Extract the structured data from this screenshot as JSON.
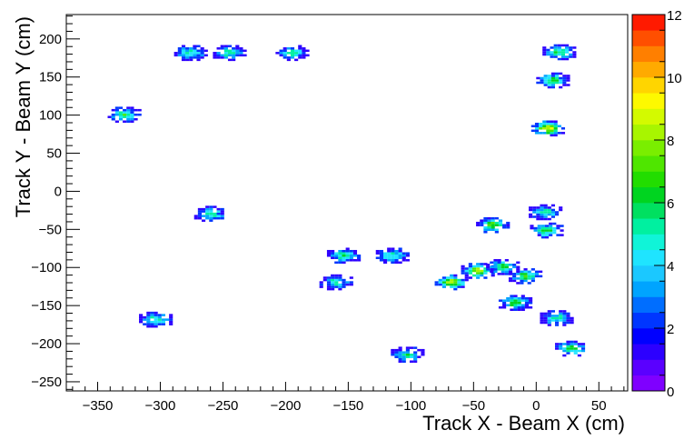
{
  "chart_data": {
    "type": "heatmap",
    "title": "",
    "xlabel": "Track X - Beam X (cm)",
    "ylabel": "Track Y - Beam Y (cm)",
    "xlim": [
      -375,
      73
    ],
    "ylim": [
      -262,
      232
    ],
    "zlim": [
      0,
      12
    ],
    "xticks": [
      -350,
      -300,
      -250,
      -200,
      -150,
      -100,
      -50,
      0,
      50
    ],
    "yticks": [
      -250,
      -200,
      -150,
      -100,
      -50,
      0,
      50,
      100,
      150,
      200
    ],
    "zticks": [
      0,
      2,
      4,
      6,
      8,
      10,
      12
    ],
    "colorbar_colors": [
      "#7f00ff",
      "#5a00ff",
      "#2c00ff",
      "#0000ff",
      "#0036ff",
      "#006eff",
      "#00a4ff",
      "#1bc8ff",
      "#1fe4ff",
      "#10f4d8",
      "#00f0a0",
      "#00e060",
      "#00d420",
      "#22dd00",
      "#4fe600",
      "#7aee00",
      "#a8f500",
      "#d3fa00",
      "#fdf900",
      "#ffd500",
      "#ffaa00",
      "#ff7f00",
      "#ff4f00",
      "#ff1a00"
    ],
    "clusters": [
      {
        "x": -330,
        "y": 99,
        "peak": 6
      },
      {
        "x": -277,
        "y": 180,
        "peak": 5
      },
      {
        "x": -246,
        "y": 180,
        "peak": 5
      },
      {
        "x": -196,
        "y": 180,
        "peak": 5
      },
      {
        "x": -261,
        "y": -31,
        "peak": 5
      },
      {
        "x": -305,
        "y": -170,
        "peak": 5
      },
      {
        "x": -155,
        "y": -86,
        "peak": 5
      },
      {
        "x": -116,
        "y": -86,
        "peak": 5
      },
      {
        "x": -161,
        "y": -121,
        "peak": 5
      },
      {
        "x": -104,
        "y": -216,
        "peak": 5
      },
      {
        "x": -69,
        "y": -121,
        "peak": 8
      },
      {
        "x": -48,
        "y": -106,
        "peak": 8
      },
      {
        "x": -36,
        "y": -46,
        "peak": 7
      },
      {
        "x": -28,
        "y": -101,
        "peak": 6
      },
      {
        "x": -10,
        "y": -113,
        "peak": 6
      },
      {
        "x": -18,
        "y": -148,
        "peak": 6
      },
      {
        "x": 6,
        "y": -29,
        "peak": 5
      },
      {
        "x": 7,
        "y": -53,
        "peak": 6
      },
      {
        "x": 8,
        "y": 81,
        "peak": 9
      },
      {
        "x": 12,
        "y": 144,
        "peak": 6
      },
      {
        "x": 17,
        "y": 181,
        "peak": 6
      },
      {
        "x": 15,
        "y": -168,
        "peak": 5
      },
      {
        "x": 27,
        "y": -208,
        "peak": 6
      }
    ]
  }
}
